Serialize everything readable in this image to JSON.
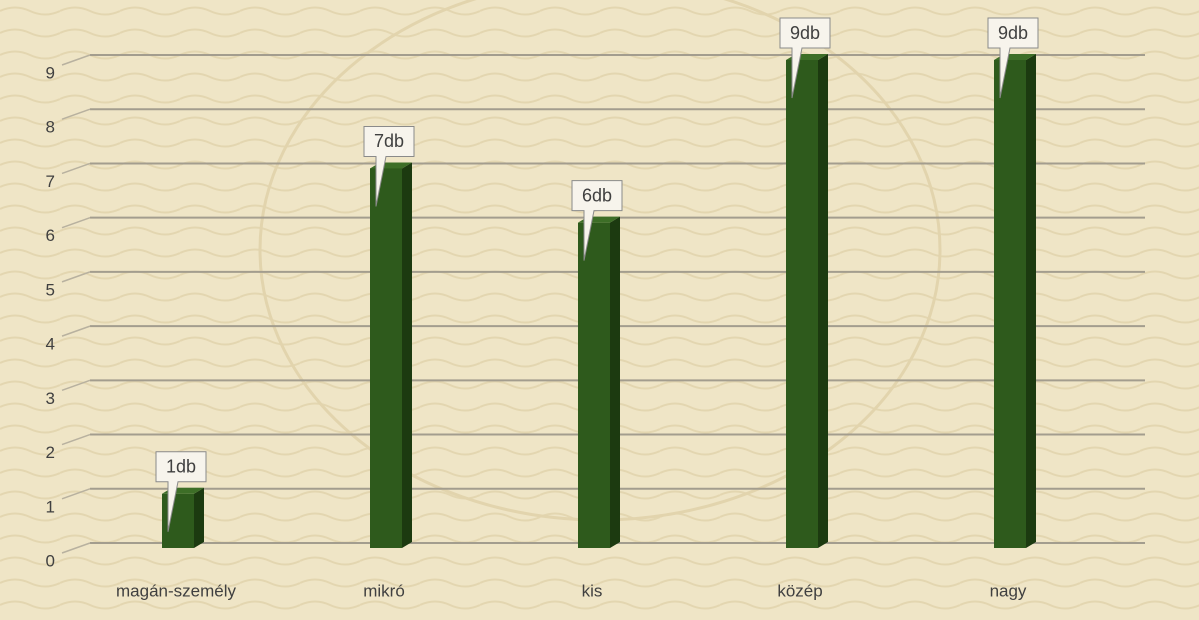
{
  "chart_data": {
    "type": "bar",
    "categories": [
      "magán-személy",
      "mikró",
      "kis",
      "közép",
      "nagy"
    ],
    "values": [
      1,
      7,
      6,
      9,
      9
    ],
    "value_labels": [
      "1db",
      "7db",
      "6db",
      "9db",
      "9db"
    ],
    "color": "#2e5a1c",
    "ylim": [
      0,
      9
    ],
    "yticks": [
      0,
      1,
      2,
      3,
      4,
      5,
      6,
      7,
      8,
      9
    ],
    "grid": true
  }
}
